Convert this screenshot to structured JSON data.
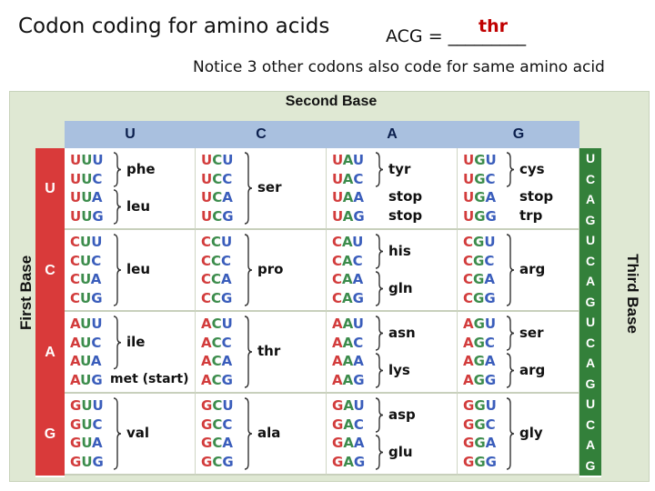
{
  "slide": {
    "title": "Codon coding for amino acids",
    "question": "ACG = _________",
    "answer": "thr",
    "notice": "Notice 3 other codons also code for same amino acid"
  },
  "table": {
    "second_base_label": "Second Base",
    "first_base_label": "First Base",
    "third_base_label": "Third Base",
    "second_bases": [
      "U",
      "C",
      "A",
      "G"
    ],
    "first_bases": [
      "U",
      "C",
      "A",
      "G"
    ],
    "third_bases": [
      "U",
      "C",
      "A",
      "G"
    ],
    "cells": [
      [
        {
          "codons": [
            "UUU",
            "UUC",
            "UUA",
            "UUG"
          ],
          "amino": [
            "phe",
            "leu"
          ]
        },
        {
          "codons": [
            "UCU",
            "UCC",
            "UCA",
            "UCG"
          ],
          "amino": [
            "ser"
          ]
        },
        {
          "codons": [
            "UAU",
            "UAC",
            "UAA",
            "UAG"
          ],
          "amino": [
            "tyr",
            "stop",
            "stop"
          ]
        },
        {
          "codons": [
            "UGU",
            "UGC",
            "UGA",
            "UGG"
          ],
          "amino": [
            "cys",
            "stop",
            "trp"
          ]
        }
      ],
      [
        {
          "codons": [
            "CUU",
            "CUC",
            "CUA",
            "CUG"
          ],
          "amino": [
            "leu"
          ]
        },
        {
          "codons": [
            "CCU",
            "CCC",
            "CCA",
            "CCG"
          ],
          "amino": [
            "pro"
          ]
        },
        {
          "codons": [
            "CAU",
            "CAC",
            "CAA",
            "CAG"
          ],
          "amino": [
            "his",
            "gln"
          ]
        },
        {
          "codons": [
            "CGU",
            "CGC",
            "CGA",
            "CGG"
          ],
          "amino": [
            "arg"
          ]
        }
      ],
      [
        {
          "codons": [
            "AUU",
            "AUC",
            "AUA",
            "AUG"
          ],
          "amino": [
            "ile",
            "met (start)"
          ]
        },
        {
          "codons": [
            "ACU",
            "ACC",
            "ACA",
            "ACG"
          ],
          "amino": [
            "thr"
          ]
        },
        {
          "codons": [
            "AAU",
            "AAC",
            "AAA",
            "AAG"
          ],
          "amino": [
            "asn",
            "lys"
          ]
        },
        {
          "codons": [
            "AGU",
            "AGC",
            "AGA",
            "AGG"
          ],
          "amino": [
            "ser",
            "arg"
          ]
        }
      ],
      [
        {
          "codons": [
            "GUU",
            "GUC",
            "GUA",
            "GUG"
          ],
          "amino": [
            "val"
          ]
        },
        {
          "codons": [
            "GCU",
            "GCC",
            "GCA",
            "GCG"
          ],
          "amino": [
            "ala"
          ]
        },
        {
          "codons": [
            "GAU",
            "GAC",
            "GAA",
            "GAG"
          ],
          "amino": [
            "asp",
            "glu"
          ]
        },
        {
          "codons": [
            "GGU",
            "GGC",
            "GGA",
            "GGG"
          ],
          "amino": [
            "gly"
          ]
        }
      ]
    ],
    "colors": {
      "first_base": "#d93a3a",
      "second_base_header": "#a9c0df",
      "third_base": "#33803a",
      "panel": "#dfe8d3",
      "codon_first": "#d23c3c",
      "codon_second": "#3c8c4c",
      "codon_third": "#3a5dbb"
    }
  }
}
